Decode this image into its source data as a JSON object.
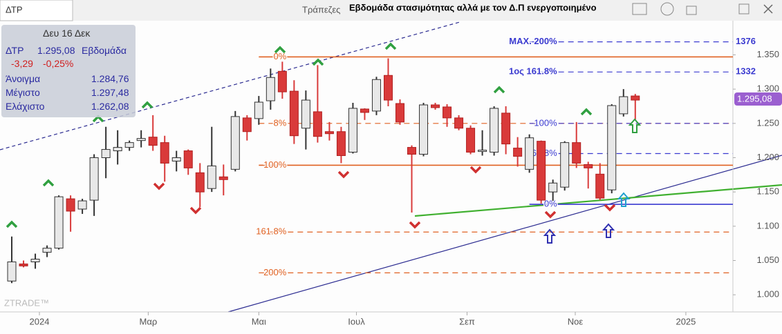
{
  "header": {
    "symbol_tab": "ΔΤΡ",
    "sector": "Τράπεζες",
    "title": "Εβδομάδα στασιμότητας αλλά με τον Δ.Π ενεργοποιημένο"
  },
  "info_box": {
    "date": "Δευ 16 Δεκ",
    "symbol": "ΔΤΡ",
    "price": "1.295,08",
    "period": "Εβδομάδα",
    "change": "-3,29",
    "change_pct": "-0,25%",
    "rows": [
      {
        "label": "Άνοιγμα",
        "value": "1.284,76"
      },
      {
        "label": "Μέγιστο",
        "value": "1.297,48"
      },
      {
        "label": "Ελάχιστο",
        "value": "1.262,08"
      }
    ]
  },
  "price_tag": "1.295,08",
  "watermark": "ZTRADE™",
  "chart_data": {
    "type": "candlestick",
    "xlim": [
      -1,
      61.3
    ],
    "xticks": [
      {
        "value": 2.35,
        "label": "2024"
      },
      {
        "value": 11.6,
        "label": "Μαρ"
      },
      {
        "value": 21.0,
        "label": "Μαι"
      },
      {
        "value": 29.3,
        "label": "Ιουλ"
      },
      {
        "value": 38.7,
        "label": "Σεπ"
      },
      {
        "value": 47.9,
        "label": "Νοε"
      },
      {
        "value": 57.3,
        "label": "2025"
      }
    ],
    "ylim": [
      0.975,
      1.43
    ],
    "yticks": [
      {
        "value": 1.0,
        "label": "1.000"
      },
      {
        "value": 1.05,
        "label": "1.050"
      },
      {
        "value": 1.1,
        "label": "1.100"
      },
      {
        "value": 1.15,
        "label": "1.150"
      },
      {
        "value": 1.2,
        "label": "1.200"
      },
      {
        "value": 1.25,
        "label": "1.250"
      },
      {
        "value": 1.3,
        "label": "1.300"
      },
      {
        "value": 1.35,
        "label": "1.350"
      }
    ],
    "up_color": "#e8e8e8",
    "down_color": "#d93a3a",
    "open": [
      1.02,
      1.045,
      1.048,
      1.062,
      1.068,
      1.14,
      1.125,
      1.138,
      1.2,
      1.21,
      1.215,
      1.225,
      1.23,
      1.222,
      1.195,
      1.21,
      1.178,
      1.155,
      1.172,
      1.183,
      1.258,
      1.257,
      1.283,
      1.326,
      1.297,
      1.243,
      1.267,
      1.238,
      1.238,
      1.208,
      1.271,
      1.268,
      1.32,
      1.279,
      1.215,
      1.205,
      1.277,
      1.274,
      1.258,
      1.243,
      1.21,
      1.208,
      1.265,
      1.214,
      1.183,
      1.224,
      1.15,
      1.157,
      1.222,
      1.19,
      1.176,
      1.153,
      1.264,
      1.29
    ],
    "high": [
      1.085,
      1.05,
      1.06,
      1.072,
      1.145,
      1.145,
      1.14,
      1.205,
      1.245,
      1.24,
      1.225,
      1.24,
      1.262,
      1.232,
      1.21,
      1.212,
      1.192,
      1.245,
      1.19,
      1.268,
      1.262,
      1.29,
      1.33,
      1.34,
      1.313,
      1.298,
      1.335,
      1.252,
      1.245,
      1.28,
      1.272,
      1.318,
      1.345,
      1.285,
      1.218,
      1.28,
      1.28,
      1.278,
      1.262,
      1.247,
      1.24,
      1.275,
      1.275,
      1.23,
      1.234,
      1.225,
      1.168,
      1.224,
      1.252,
      1.194,
      1.192,
      1.278,
      1.3,
      1.293
    ],
    "low": [
      1.017,
      1.04,
      1.038,
      1.055,
      1.066,
      1.092,
      1.118,
      1.115,
      1.17,
      1.19,
      1.21,
      1.215,
      1.21,
      1.165,
      1.18,
      1.175,
      1.128,
      1.15,
      1.145,
      1.18,
      1.225,
      1.248,
      1.27,
      1.286,
      1.22,
      1.212,
      1.222,
      1.225,
      1.192,
      1.206,
      1.255,
      1.262,
      1.275,
      1.248,
      1.12,
      1.202,
      1.27,
      1.245,
      1.24,
      1.205,
      1.203,
      1.203,
      1.205,
      1.187,
      1.178,
      1.133,
      1.137,
      1.152,
      1.185,
      1.155,
      1.138,
      1.148,
      1.26,
      1.255
    ],
    "close": [
      1.048,
      1.042,
      1.052,
      1.068,
      1.143,
      1.122,
      1.137,
      1.2,
      1.212,
      1.215,
      1.222,
      1.228,
      1.218,
      1.192,
      1.2,
      1.185,
      1.15,
      1.188,
      1.168,
      1.26,
      1.238,
      1.281,
      1.317,
      1.296,
      1.232,
      1.284,
      1.231,
      1.235,
      1.203,
      1.272,
      1.266,
      1.314,
      1.284,
      1.252,
      1.205,
      1.277,
      1.273,
      1.258,
      1.243,
      1.208,
      1.211,
      1.272,
      1.22,
      1.202,
      1.229,
      1.138,
      1.163,
      1.222,
      1.192,
      1.185,
      1.141,
      1.276,
      1.289,
      1.284
    ],
    "levels": [
      {
        "label": "0%",
        "value": 1.347,
        "color": "#e06020",
        "style": "solid",
        "from": 21
      },
      {
        "label": "8%",
        "value": 1.25,
        "color": "#e06020",
        "style": "dashed",
        "from": 21
      },
      {
        "label": "100%",
        "value": 1.189,
        "color": "#e06020",
        "style": "solid",
        "from": 21
      },
      {
        "label": "161.8%",
        "value": 1.0915,
        "color": "#e06020",
        "style": "dashed",
        "from": 21
      },
      {
        "label": "200%",
        "value": 1.032,
        "color": "#e06020",
        "style": "dashed",
        "from": 21
      },
      {
        "label": "MAX. 200%",
        "value": 1.369,
        "color": "#3a3ad0",
        "style": "dashed",
        "from": 44,
        "right_label": 1376
      },
      {
        "label": "1ος 161.8%",
        "value": 1.325,
        "color": "#3a3ad0",
        "style": "dashed",
        "from": 44,
        "right_label": 1332
      },
      {
        "label": "100%",
        "value": 1.25,
        "color": "#3a3ad0",
        "style": "dashed",
        "from": 44
      },
      {
        "label": "61.8%",
        "value": 1.206,
        "color": "#3a3ad0",
        "style": "dashed",
        "from": 44
      },
      {
        "label": "0%",
        "value": 1.132,
        "color": "#3a3ad0",
        "style": "solid",
        "from": 44
      }
    ]
  }
}
